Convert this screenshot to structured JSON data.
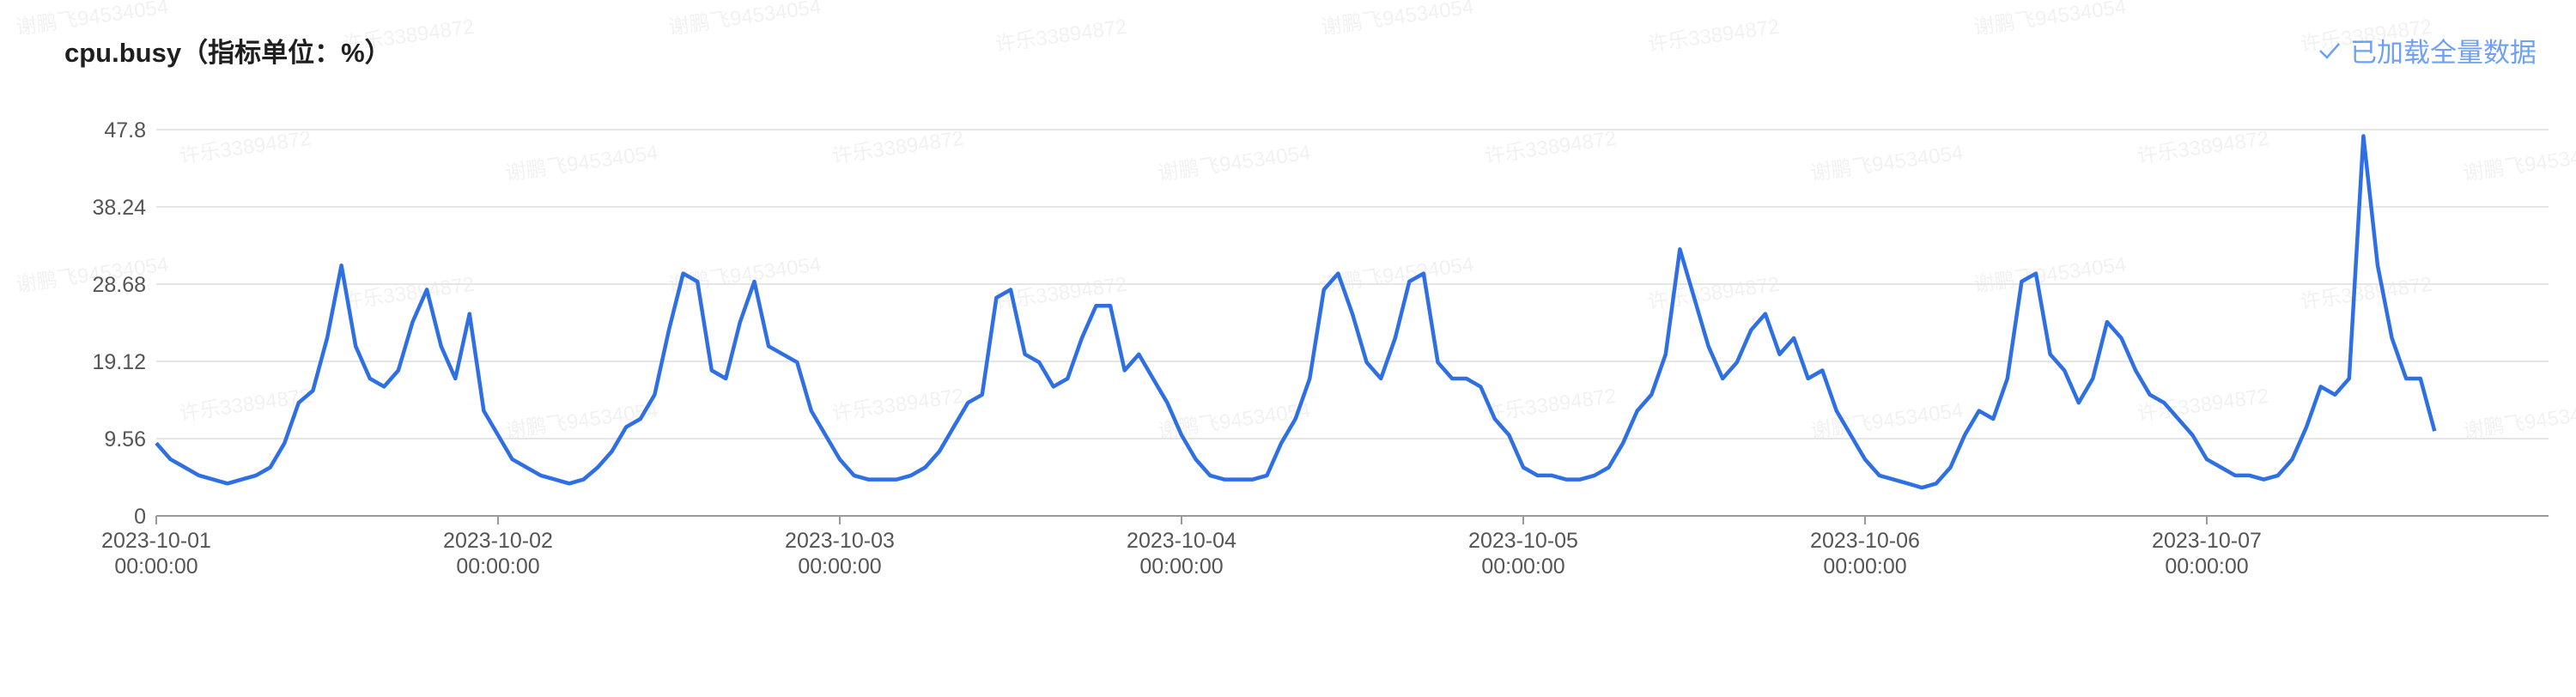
{
  "header": {
    "title": "cpu.busy（指标单位：%）",
    "status": "已加载全量数据"
  },
  "watermarks": [
    "谢鹏飞94534054",
    "许乐33894872"
  ],
  "chart_data": {
    "type": "line",
    "color": "#2f6fe4",
    "grid": true,
    "ylim": [
      0,
      47.8
    ],
    "yticks": [
      0,
      9.56,
      19.12,
      28.68,
      38.24,
      47.8
    ],
    "xlim": [
      "2023-10-01 00:00:00",
      "2023-10-08 00:00:00"
    ],
    "xticks": [
      "2023-10-01 00:00:00",
      "2023-10-02 00:00:00",
      "2023-10-03 00:00:00",
      "2023-10-04 00:00:00",
      "2023-10-05 00:00:00",
      "2023-10-06 00:00:00",
      "2023-10-07 00:00:00"
    ],
    "x": [
      "2023-10-01 00:00:00",
      "2023-10-01 01:00:00",
      "2023-10-01 02:00:00",
      "2023-10-01 03:00:00",
      "2023-10-01 04:00:00",
      "2023-10-01 05:00:00",
      "2023-10-01 06:00:00",
      "2023-10-01 07:00:00",
      "2023-10-01 08:00:00",
      "2023-10-01 09:00:00",
      "2023-10-01 10:00:00",
      "2023-10-01 11:00:00",
      "2023-10-01 12:00:00",
      "2023-10-01 13:00:00",
      "2023-10-01 14:00:00",
      "2023-10-01 15:00:00",
      "2023-10-01 16:00:00",
      "2023-10-01 17:00:00",
      "2023-10-01 18:00:00",
      "2023-10-01 19:00:00",
      "2023-10-01 20:00:00",
      "2023-10-01 21:00:00",
      "2023-10-01 22:00:00",
      "2023-10-01 23:00:00",
      "2023-10-02 00:00:00",
      "2023-10-02 01:00:00",
      "2023-10-02 02:00:00",
      "2023-10-02 03:00:00",
      "2023-10-02 04:00:00",
      "2023-10-02 05:00:00",
      "2023-10-02 06:00:00",
      "2023-10-02 07:00:00",
      "2023-10-02 08:00:00",
      "2023-10-02 09:00:00",
      "2023-10-02 10:00:00",
      "2023-10-02 11:00:00",
      "2023-10-02 12:00:00",
      "2023-10-02 13:00:00",
      "2023-10-02 14:00:00",
      "2023-10-02 15:00:00",
      "2023-10-02 16:00:00",
      "2023-10-02 17:00:00",
      "2023-10-02 18:00:00",
      "2023-10-02 19:00:00",
      "2023-10-02 20:00:00",
      "2023-10-02 21:00:00",
      "2023-10-02 22:00:00",
      "2023-10-02 23:00:00",
      "2023-10-03 00:00:00",
      "2023-10-03 01:00:00",
      "2023-10-03 02:00:00",
      "2023-10-03 03:00:00",
      "2023-10-03 04:00:00",
      "2023-10-03 05:00:00",
      "2023-10-03 06:00:00",
      "2023-10-03 07:00:00",
      "2023-10-03 08:00:00",
      "2023-10-03 09:00:00",
      "2023-10-03 10:00:00",
      "2023-10-03 11:00:00",
      "2023-10-03 12:00:00",
      "2023-10-03 13:00:00",
      "2023-10-03 14:00:00",
      "2023-10-03 15:00:00",
      "2023-10-03 16:00:00",
      "2023-10-03 17:00:00",
      "2023-10-03 18:00:00",
      "2023-10-03 19:00:00",
      "2023-10-03 20:00:00",
      "2023-10-03 21:00:00",
      "2023-10-03 22:00:00",
      "2023-10-03 23:00:00",
      "2023-10-04 00:00:00",
      "2023-10-04 01:00:00",
      "2023-10-04 02:00:00",
      "2023-10-04 03:00:00",
      "2023-10-04 04:00:00",
      "2023-10-04 05:00:00",
      "2023-10-04 06:00:00",
      "2023-10-04 07:00:00",
      "2023-10-04 08:00:00",
      "2023-10-04 09:00:00",
      "2023-10-04 10:00:00",
      "2023-10-04 11:00:00",
      "2023-10-04 12:00:00",
      "2023-10-04 13:00:00",
      "2023-10-04 14:00:00",
      "2023-10-04 15:00:00",
      "2023-10-04 16:00:00",
      "2023-10-04 17:00:00",
      "2023-10-04 18:00:00",
      "2023-10-04 19:00:00",
      "2023-10-04 20:00:00",
      "2023-10-04 21:00:00",
      "2023-10-04 22:00:00",
      "2023-10-04 23:00:00",
      "2023-10-05 00:00:00",
      "2023-10-05 01:00:00",
      "2023-10-05 02:00:00",
      "2023-10-05 03:00:00",
      "2023-10-05 04:00:00",
      "2023-10-05 05:00:00",
      "2023-10-05 06:00:00",
      "2023-10-05 07:00:00",
      "2023-10-05 08:00:00",
      "2023-10-05 09:00:00",
      "2023-10-05 10:00:00",
      "2023-10-05 11:00:00",
      "2023-10-05 12:00:00",
      "2023-10-05 13:00:00",
      "2023-10-05 14:00:00",
      "2023-10-05 15:00:00",
      "2023-10-05 16:00:00",
      "2023-10-05 17:00:00",
      "2023-10-05 18:00:00",
      "2023-10-05 19:00:00",
      "2023-10-05 20:00:00",
      "2023-10-05 21:00:00",
      "2023-10-05 22:00:00",
      "2023-10-05 23:00:00",
      "2023-10-06 00:00:00",
      "2023-10-06 01:00:00",
      "2023-10-06 02:00:00",
      "2023-10-06 03:00:00",
      "2023-10-06 04:00:00",
      "2023-10-06 05:00:00",
      "2023-10-06 06:00:00",
      "2023-10-06 07:00:00",
      "2023-10-06 08:00:00",
      "2023-10-06 09:00:00",
      "2023-10-06 10:00:00",
      "2023-10-06 11:00:00",
      "2023-10-06 12:00:00",
      "2023-10-06 13:00:00",
      "2023-10-06 14:00:00",
      "2023-10-06 15:00:00",
      "2023-10-06 16:00:00",
      "2023-10-06 17:00:00",
      "2023-10-06 18:00:00",
      "2023-10-06 19:00:00",
      "2023-10-06 20:00:00",
      "2023-10-06 21:00:00",
      "2023-10-06 22:00:00",
      "2023-10-06 23:00:00",
      "2023-10-07 00:00:00",
      "2023-10-07 01:00:00",
      "2023-10-07 02:00:00",
      "2023-10-07 03:00:00",
      "2023-10-07 04:00:00",
      "2023-10-07 05:00:00",
      "2023-10-07 06:00:00",
      "2023-10-07 07:00:00",
      "2023-10-07 08:00:00",
      "2023-10-07 09:00:00",
      "2023-10-07 10:00:00",
      "2023-10-07 11:00:00",
      "2023-10-07 12:00:00",
      "2023-10-07 13:00:00",
      "2023-10-07 14:00:00",
      "2023-10-07 15:00:00",
      "2023-10-07 16:00:00"
    ],
    "values": [
      9,
      7,
      6,
      5,
      4.5,
      4,
      4.5,
      5,
      6,
      9,
      14,
      15.5,
      22,
      31,
      21,
      17,
      16,
      18,
      24,
      28,
      21,
      17,
      25,
      13,
      10,
      7,
      6,
      5,
      4.5,
      4,
      4.5,
      6,
      8,
      11,
      12,
      15,
      23,
      30,
      29,
      18,
      17,
      24,
      29,
      21,
      20,
      19,
      13,
      10,
      7,
      5,
      4.5,
      4.5,
      4.5,
      5,
      6,
      8,
      11,
      14,
      15,
      27,
      28,
      20,
      19,
      16,
      17,
      22,
      26,
      26,
      18,
      20,
      17,
      14,
      10,
      7,
      5,
      4.5,
      4.5,
      4.5,
      5,
      9,
      12,
      17,
      28,
      30,
      25,
      19,
      17,
      22,
      29,
      30,
      19,
      17,
      17,
      16,
      12,
      10,
      6,
      5,
      5,
      4.5,
      4.5,
      5,
      6,
      9,
      13,
      15,
      20,
      33,
      27,
      21,
      17,
      19,
      23,
      25,
      20,
      22,
      17,
      18,
      13,
      10,
      7,
      5,
      4.5,
      4,
      3.5,
      4,
      6,
      10,
      13,
      12,
      17,
      29,
      30,
      20,
      18,
      14,
      17,
      24,
      22,
      18,
      15,
      14,
      12,
      10,
      7,
      6,
      5,
      5,
      4.5,
      5,
      7,
      11,
      16,
      15,
      17,
      47,
      31,
      22,
      17,
      17,
      10.5
    ]
  }
}
